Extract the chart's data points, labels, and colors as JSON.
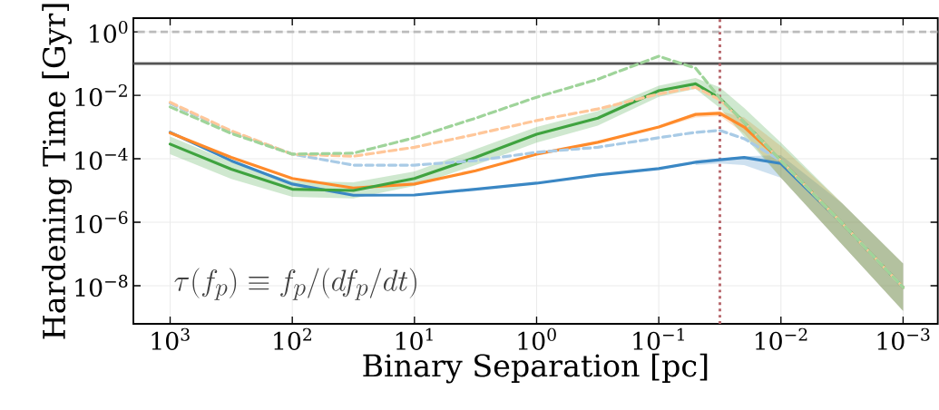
{
  "chart_data": {
    "type": "line",
    "xlabel": "Binary Separation [pc]",
    "ylabel": "Hardening Time [Gyr]",
    "annotations": [
      "\\tau(f_p) \\equiv f_p/(df_p/dt)"
    ],
    "x": [
      1000,
      316,
      100,
      31.6,
      10,
      3.16,
      1,
      0.316,
      0.1,
      0.05,
      0.0316,
      0.02,
      0.01,
      0.00316,
      0.001
    ],
    "xlim": [
      2000,
      0.00052
    ],
    "ylim": [
      6.3e-10,
      2.7
    ],
    "log": "xy",
    "grid": true,
    "xticks": [
      {
        "value": 1000,
        "label": "10$^{3}$"
      },
      {
        "value": 100,
        "label": "10$^{2}$"
      },
      {
        "value": 10,
        "label": "10$^{1}$"
      },
      {
        "value": 1,
        "label": "10$^{0}$"
      },
      {
        "value": 0.1,
        "label": "10$^{−1}$"
      },
      {
        "value": 0.01,
        "label": "10$^{−2}$"
      },
      {
        "value": 0.001,
        "label": "10$^{−3}$"
      }
    ],
    "yticks": [
      {
        "value": 1,
        "label": "10$^{0}$"
      },
      {
        "value": 0.01,
        "label": "10$^{−2}$"
      },
      {
        "value": 0.0001,
        "label": "10$^{−4}$"
      },
      {
        "value": 1e-06,
        "label": "10$^{−6}$"
      },
      {
        "value": 1e-08,
        "label": "10$^{−8}$"
      }
    ],
    "ref_lines": [
      {
        "axis": "y",
        "value": 1,
        "color": "#bbbbbb",
        "line_style": "dashed"
      },
      {
        "axis": "y",
        "value": 0.1,
        "color": "#555555",
        "line_style": "solid"
      },
      {
        "axis": "x",
        "value": 0.0316,
        "color": "#b8696e",
        "line_style": "dotted"
      }
    ],
    "series": [
      {
        "color": "#a9cbe6",
        "line_style": "dashed",
        "values": [
          0.0056,
          0.00072,
          0.00014,
          6.3e-05,
          6.3e-05,
          8.7e-05,
          0.00016,
          0.00023,
          0.00046,
          0.00068,
          0.00078,
          0.00043,
          8.7e-05,
          9.3e-07,
          8.9e-09
        ]
      },
      {
        "color": "#ffc79a",
        "line_style": "dashed",
        "values": [
          0.006,
          0.00076,
          0.00014,
          0.00012,
          0.00023,
          0.00059,
          0.0016,
          0.0037,
          0.011,
          0.018,
          0.0072,
          0.0014,
          8.7e-05,
          9.3e-07,
          8.9e-09
        ]
      },
      {
        "color": "#9fd49a",
        "line_style": "dashed",
        "values": [
          0.0043,
          0.00063,
          0.00014,
          0.00015,
          0.00046,
          0.0019,
          0.0087,
          0.032,
          0.17,
          0.072,
          0.0081,
          0.0014,
          8.7e-05,
          9.3e-07,
          8.9e-09
        ]
      },
      {
        "color": "#3a87c4",
        "line_style": "solid",
        "values": [
          0.00068,
          8.7e-05,
          1.6e-05,
          7.1e-06,
          7.2e-06,
          1.1e-05,
          1.7e-05,
          3.1e-05,
          4.9e-05,
          7.8e-05,
          9.3e-05,
          0.00011,
          7.1e-05,
          9.3e-07,
          8.9e-09
        ],
        "lower": [
          null,
          null,
          null,
          null,
          null,
          null,
          null,
          null,
          null,
          6.3e-05,
          7.1e-05,
          6.3e-05,
          2.5e-05,
          2e-07,
          1.6e-09
        ],
        "upper": [
          null,
          null,
          null,
          null,
          null,
          null,
          null,
          null,
          null,
          8.9e-05,
          0.0001,
          0.00012,
          0.00013,
          4e-06,
          5e-08
        ]
      },
      {
        "color": "#ff8a2a",
        "line_style": "solid",
        "values": [
          0.00065,
          0.00011,
          2.4e-05,
          1.2e-05,
          1.6e-05,
          4.2e-05,
          0.00014,
          0.00033,
          0.001,
          0.0025,
          0.0027,
          0.001,
          8.7e-05,
          9.3e-07,
          8.9e-09
        ],
        "lower": [
          null,
          null,
          null,
          null,
          null,
          null,
          null,
          null,
          0.00089,
          0.002,
          0.0022,
          0.00063,
          2.5e-05,
          2e-07,
          1.6e-09
        ],
        "upper": [
          null,
          null,
          null,
          null,
          null,
          null,
          null,
          null,
          0.0011,
          0.0028,
          0.0032,
          0.002,
          0.00025,
          4e-06,
          5e-08
        ]
      },
      {
        "color": "#3fa33f",
        "line_style": "solid",
        "values": [
          0.00029,
          4.7e-05,
          1.1e-05,
          1e-05,
          2.4e-05,
          0.00011,
          0.00059,
          0.0019,
          0.014,
          0.023,
          0.0081,
          0.0014,
          8.7e-05,
          9.3e-07,
          8.9e-09
        ],
        "lower": [
          0.00014,
          2.3e-05,
          6.3e-06,
          5.6e-06,
          1.4e-05,
          6.3e-05,
          0.00032,
          0.0011,
          0.0089,
          0.016,
          0.004,
          0.0005,
          2.5e-05,
          2e-07,
          1.6e-09
        ],
        "upper": [
          0.0005,
          7.9e-05,
          2e-05,
          1.8e-05,
          4e-05,
          0.0002,
          0.001,
          0.0032,
          0.02,
          0.035,
          0.018,
          0.004,
          0.00032,
          4e-06,
          5e-08
        ]
      }
    ]
  }
}
